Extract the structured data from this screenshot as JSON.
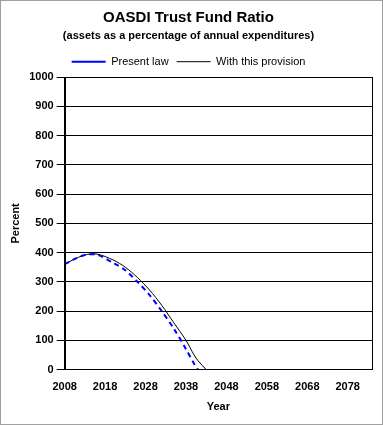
{
  "chart_data": {
    "type": "line",
    "title": "OASDI Trust Fund Ratio",
    "subtitle": "(assets as a percentage of annual expenditures)",
    "x_label": "Year",
    "y_label": "Percent",
    "x": [
      2008,
      2010,
      2013,
      2016,
      2020,
      2023,
      2026,
      2029,
      2032,
      2035,
      2038,
      2040,
      2041,
      2043
    ],
    "series": [
      {
        "name": "Present law",
        "color": "#0000ff",
        "line_style": "dashed",
        "marker": "none",
        "values": [
          360,
          375,
          392,
          393,
          365,
          340,
          300,
          255,
          200,
          140,
          70,
          20,
          0,
          null
        ]
      },
      {
        "name": "With this provision",
        "color": "#000000",
        "line_style": "solid",
        "marker": "none",
        "values": [
          360,
          375,
          392,
          395,
          375,
          350,
          315,
          272,
          220,
          160,
          100,
          50,
          30,
          0
        ]
      }
    ],
    "xlim": [
      2008,
      2084
    ],
    "xticks": [
      2008,
      2018,
      2028,
      2038,
      2048,
      2058,
      2068,
      2078
    ],
    "ylim": [
      0,
      1000
    ],
    "yticks": [
      0,
      100,
      200,
      300,
      400,
      500,
      600,
      700,
      800,
      900,
      1000
    ],
    "grid": true,
    "legend": "top"
  }
}
